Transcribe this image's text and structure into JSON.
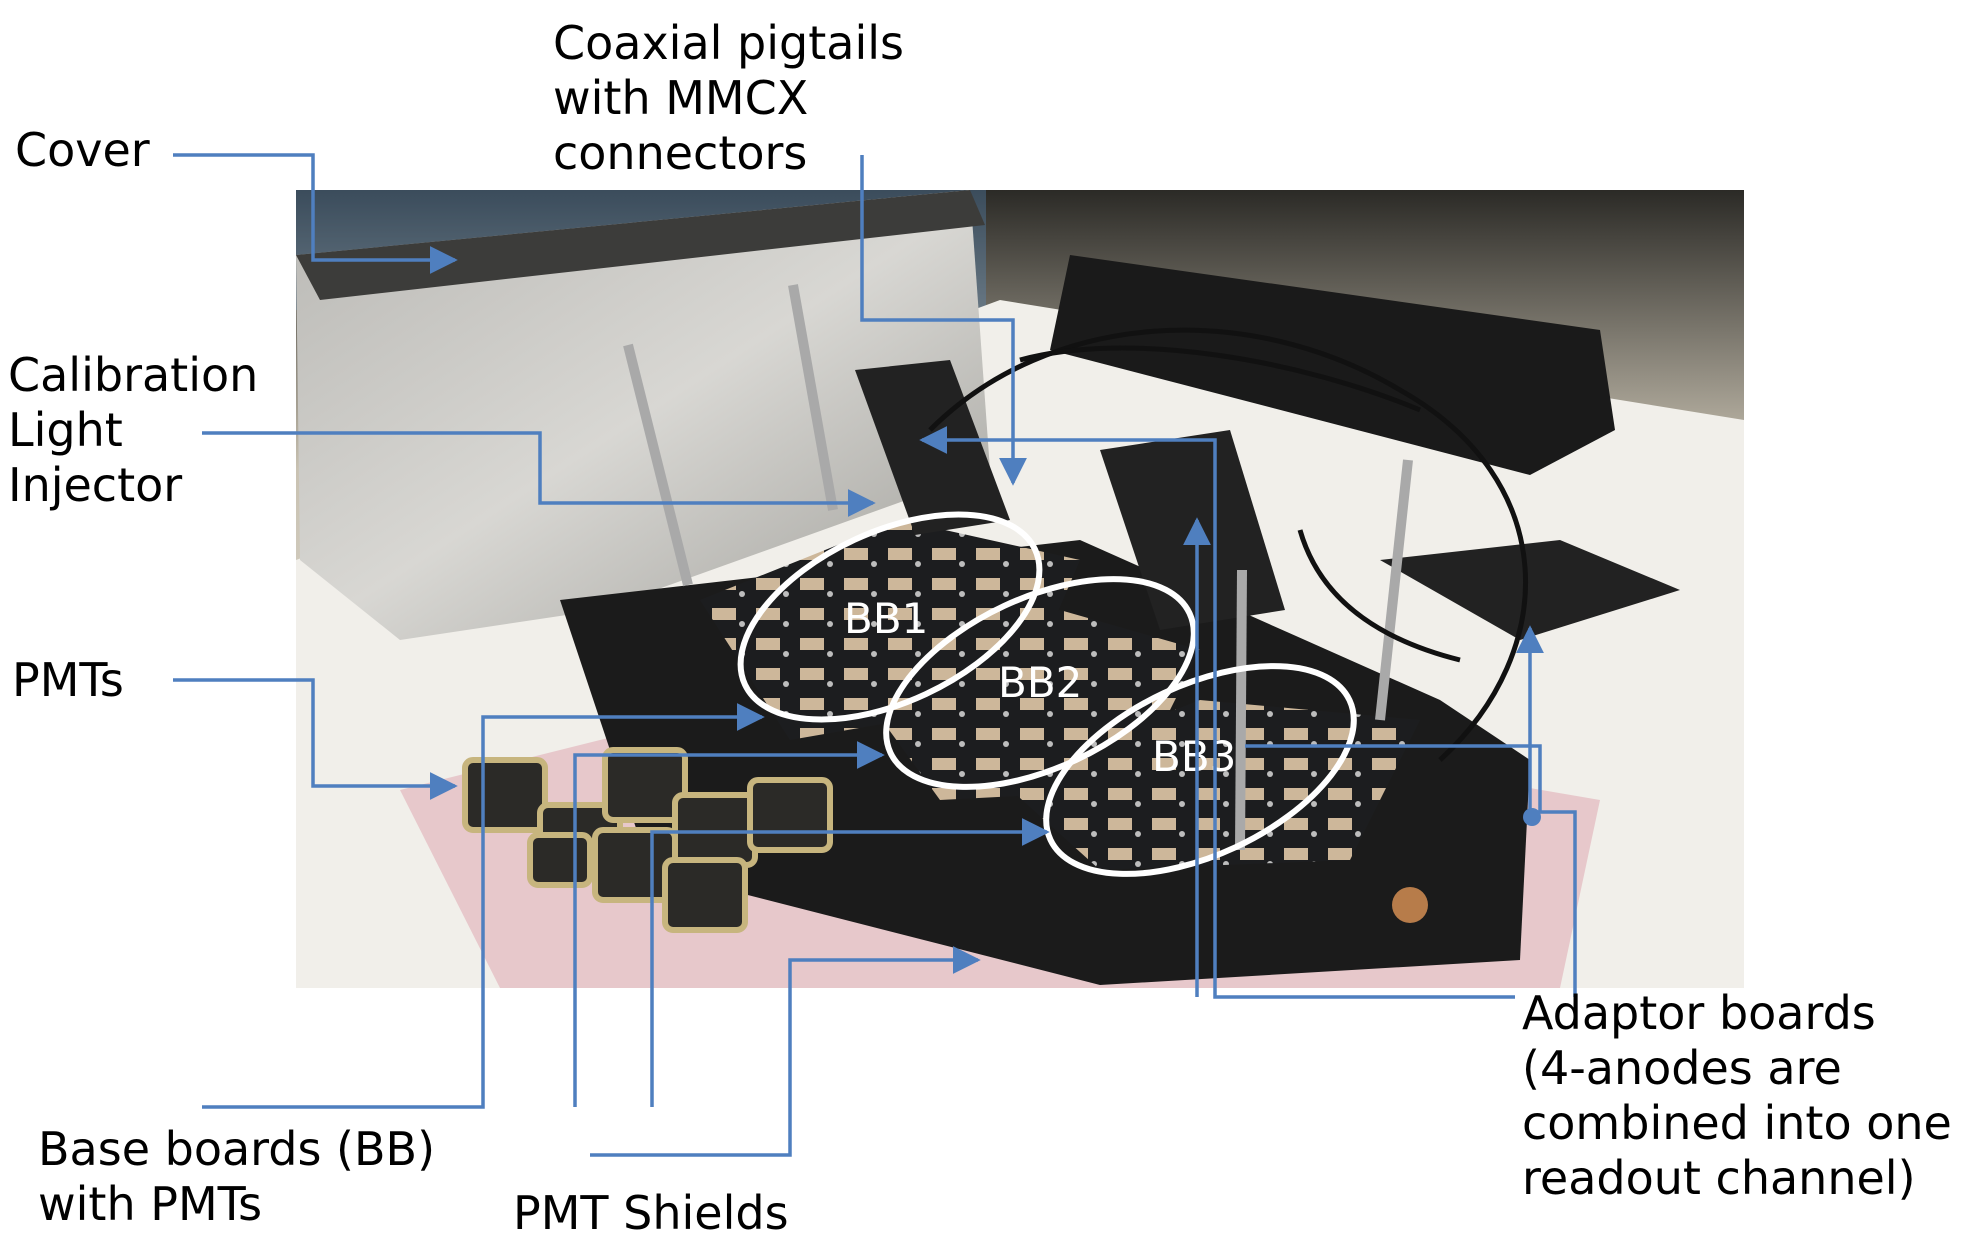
{
  "labels": {
    "cover": "Cover",
    "coax": "Coaxial pigtails\nwith MMCX\nconnectors",
    "calib": "Calibration\nLight\nInjector",
    "pmts": "PMTs",
    "base": "Base boards (BB)\nwith PMTs",
    "shields": "PMT Shields",
    "adaptor": "Adaptor boards\n(4-anodes are\ncombined into one\nreadout channel)"
  },
  "board_tags": [
    "BB1",
    "BB2",
    "BB3"
  ],
  "colors": {
    "leader": "#4f7fbf",
    "ellipse": "#ffffff",
    "label_text": "#000000"
  }
}
